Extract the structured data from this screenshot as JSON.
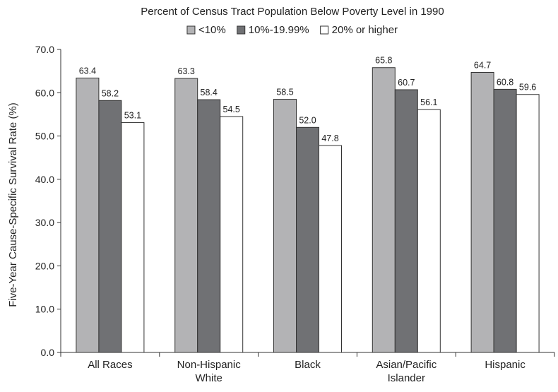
{
  "chart_data": {
    "type": "bar",
    "title": "Percent of Census Tract Population Below Poverty Level in 1990",
    "xlabel": "",
    "ylabel": "Five-Year Cause-Specific Survival Rate (%)",
    "ylim": [
      0,
      70
    ],
    "yticks": [
      "0.0",
      "10.0",
      "20.0",
      "30.0",
      "40.0",
      "50.0",
      "60.0",
      "70.0"
    ],
    "ytick_values": [
      0,
      10,
      20,
      30,
      40,
      50,
      60,
      70
    ],
    "grid": false,
    "legend_position": "top-center",
    "categories": [
      [
        "All Races"
      ],
      [
        "Non-Hispanic",
        "White"
      ],
      [
        "Black"
      ],
      [
        "Asian/Pacific",
        "Islander"
      ],
      [
        "Hispanic"
      ]
    ],
    "series": [
      {
        "name": "<10%",
        "color": "#b3b3b5",
        "values": [
          63.4,
          63.3,
          58.5,
          65.8,
          64.7
        ],
        "labels": [
          "63.4",
          "63.3",
          "58.5",
          "65.8",
          "64.7"
        ]
      },
      {
        "name": "10%-19.99%",
        "color": "#707174",
        "values": [
          58.2,
          58.4,
          52.0,
          60.7,
          60.8
        ],
        "labels": [
          "58.2",
          "58.4",
          "52.0",
          "60.7",
          "60.8"
        ]
      },
      {
        "name": "20% or higher",
        "color": "#ffffff",
        "values": [
          53.1,
          54.5,
          47.8,
          56.1,
          59.6
        ],
        "labels": [
          "53.1",
          "54.5",
          "47.8",
          "56.1",
          "59.6"
        ]
      }
    ]
  }
}
